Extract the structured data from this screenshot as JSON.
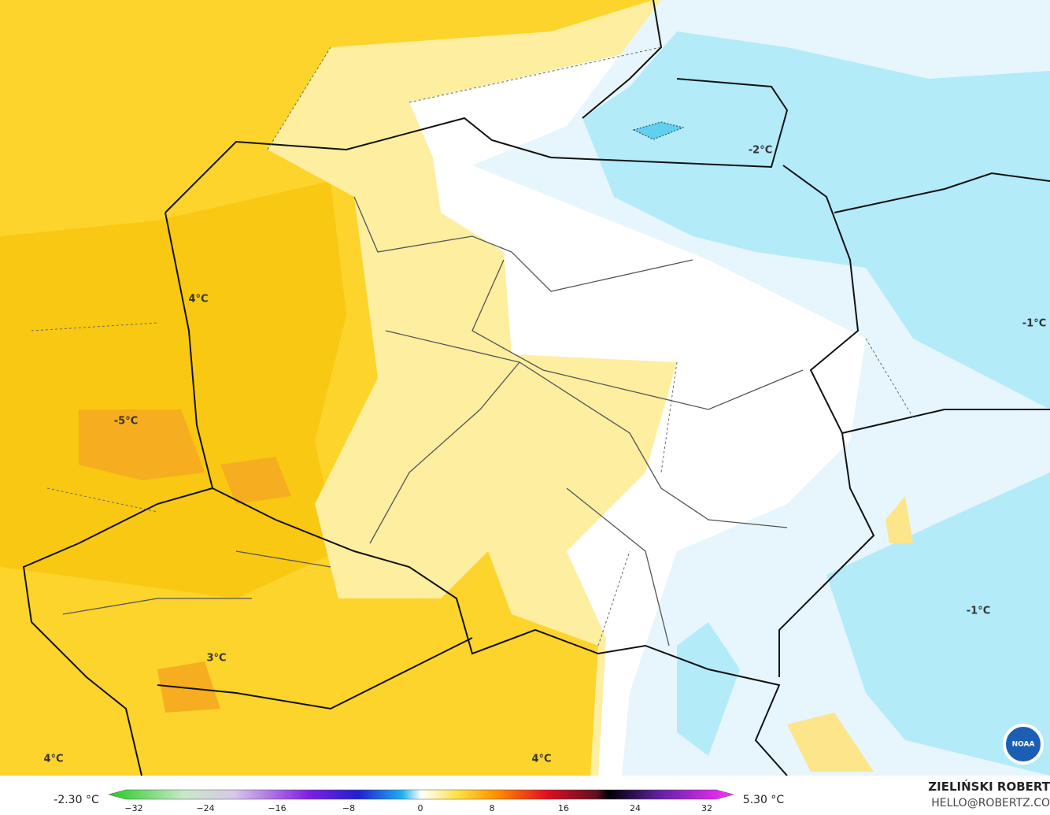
{
  "isotherm_labels": [
    "-2°C",
    "4°C",
    "-5°C",
    "-1°C",
    "-1°C",
    "3°C",
    "4°C",
    "4°C"
  ],
  "colorbar": {
    "min_label": "-2.30 °C",
    "max_label": "5.30 °C",
    "ticks": [
      "−32",
      "−24",
      "−16",
      "−8",
      "0",
      "8",
      "16",
      "24",
      "32"
    ]
  },
  "credit": {
    "author": "ZIELIŃSKI ROBERT",
    "email": "HELLO@ROBERTZ.CO"
  },
  "logo": "NOAA"
}
